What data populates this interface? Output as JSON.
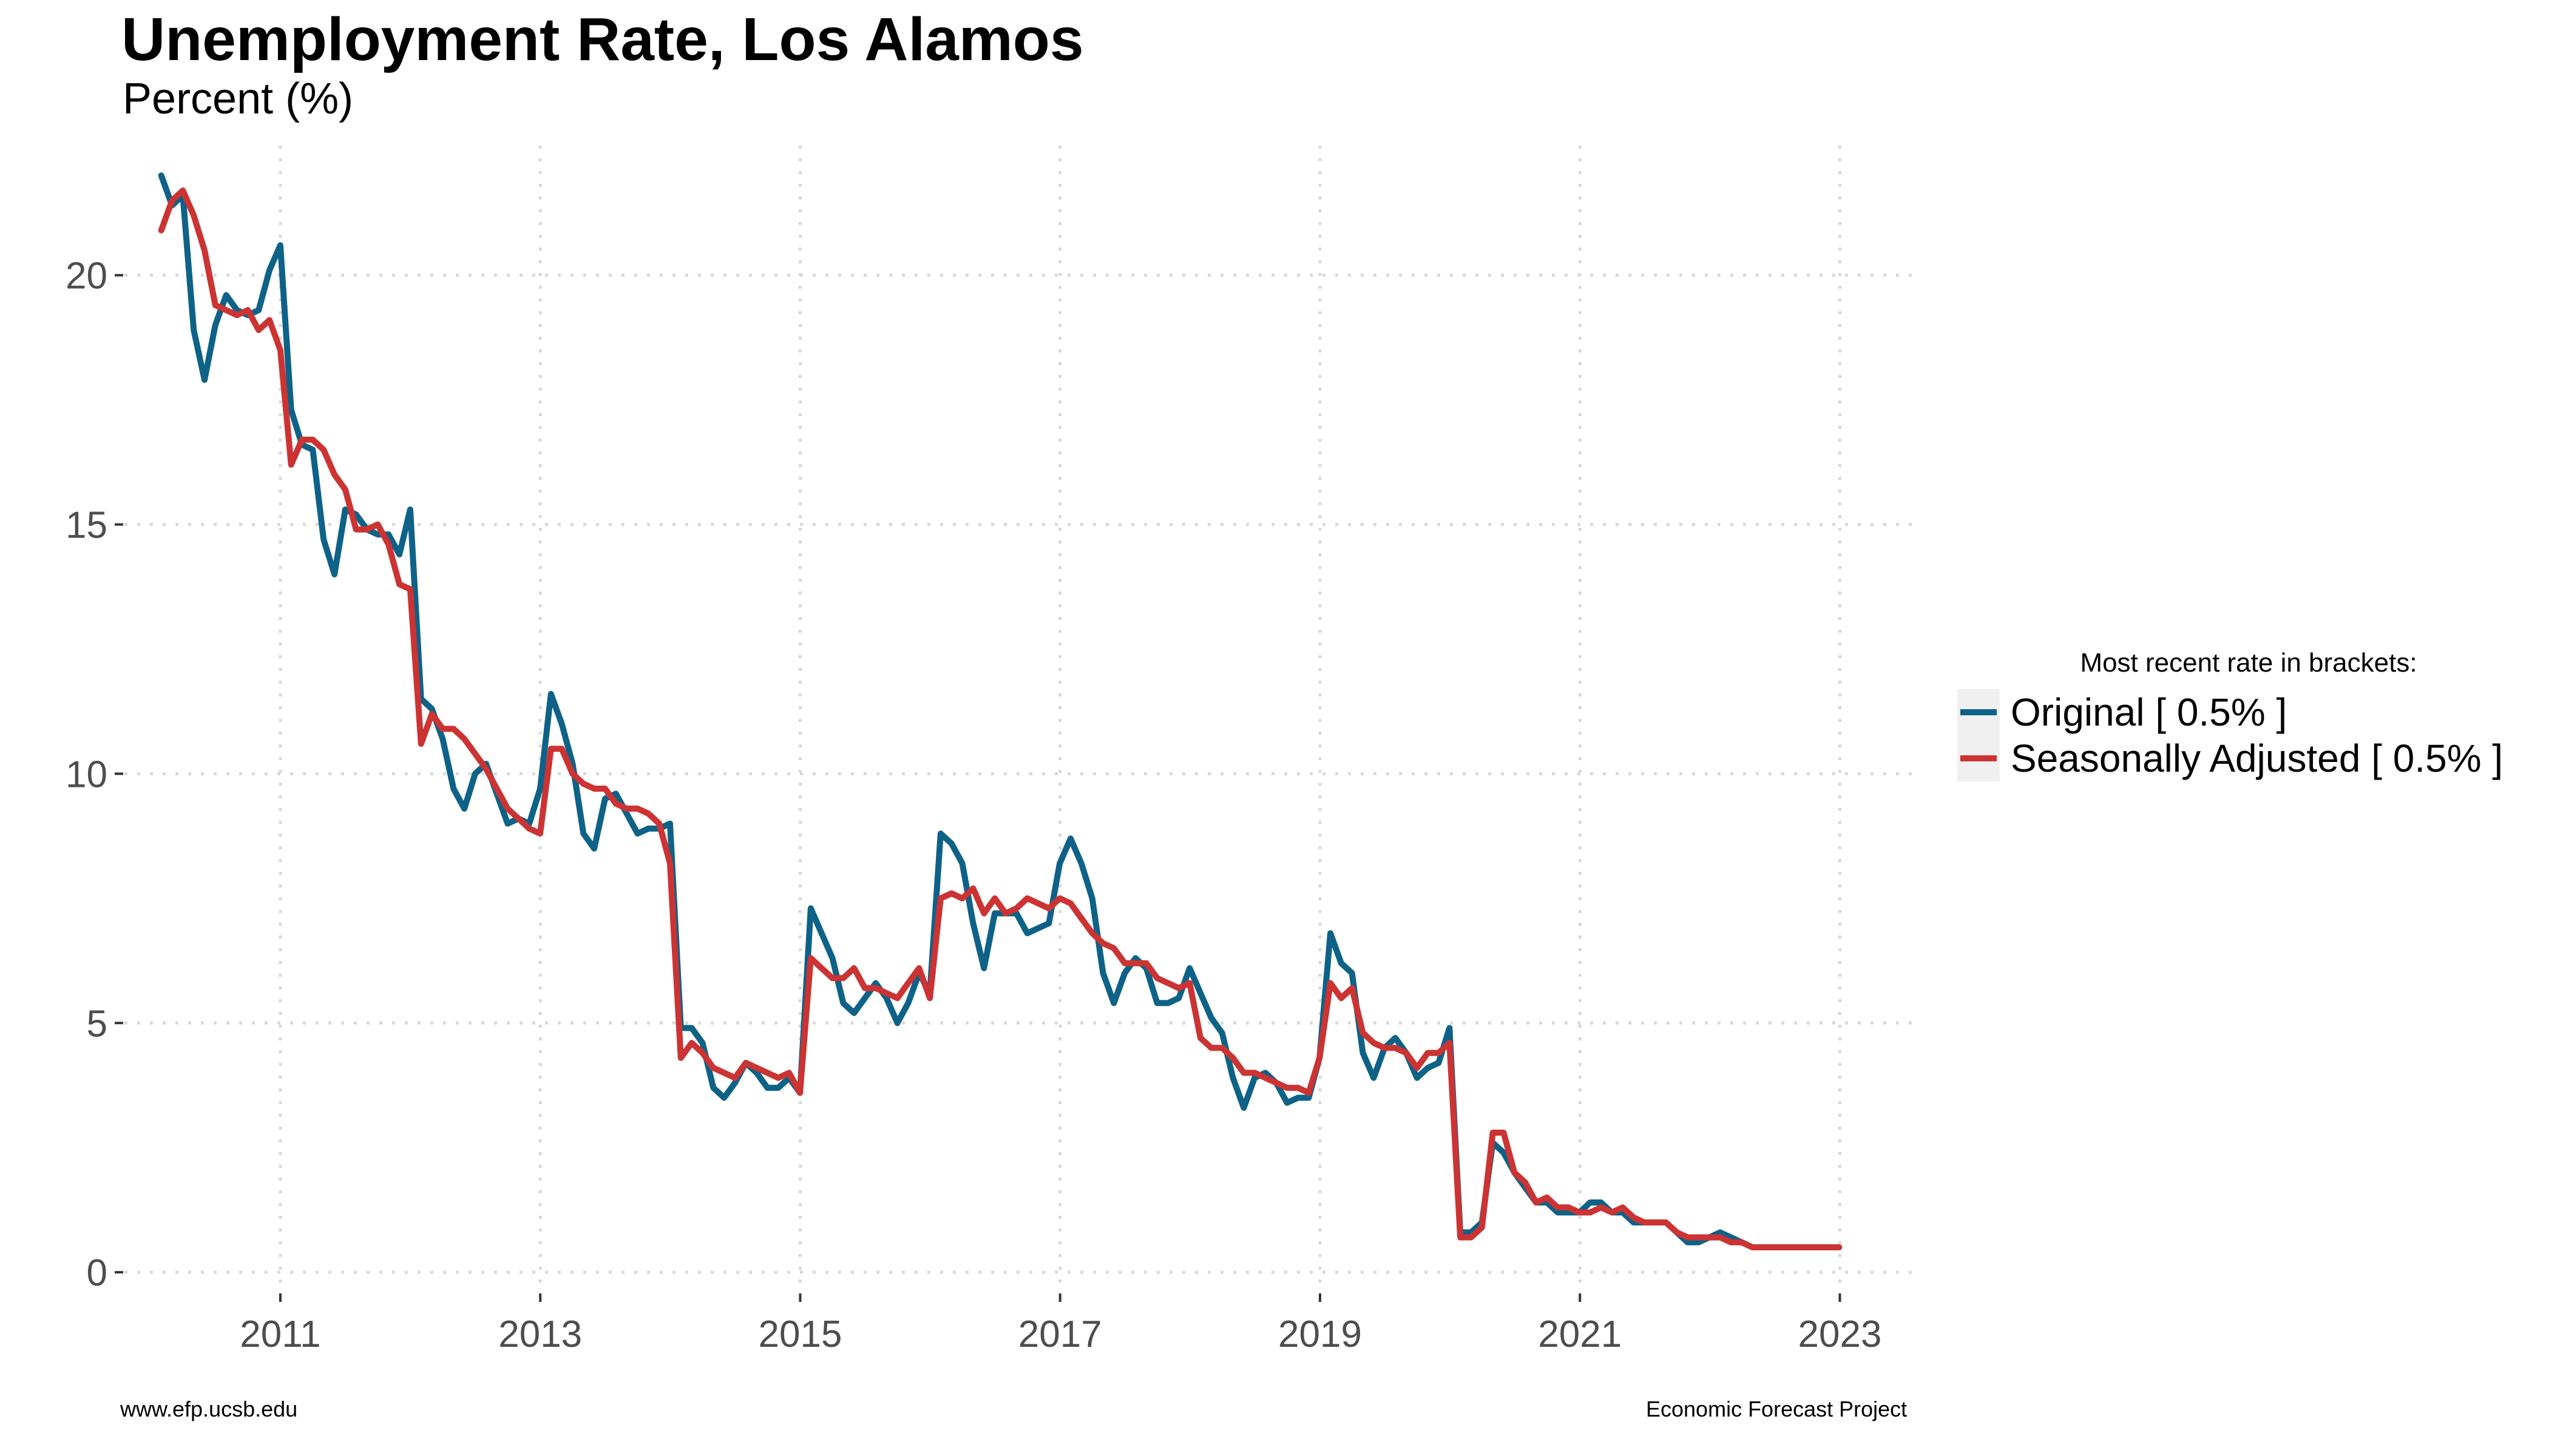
{
  "header": {
    "title": "Unemployment Rate, Los Alamos",
    "subtitle": "Percent (%)"
  },
  "legend": {
    "title": "Most recent rate in brackets:",
    "items": [
      {
        "label": "Original [ 0.5% ]",
        "color": "#0e6287"
      },
      {
        "label": "Seasonally Adjusted [ 0.5% ]",
        "color": "#cc3333"
      }
    ]
  },
  "footer": {
    "left": "www.efp.ucsb.edu",
    "right": "Economic Forecast Project"
  },
  "chart_data": {
    "type": "line",
    "title": "Unemployment Rate, Los Alamos",
    "subtitle": "Percent (%)",
    "xlabel": "",
    "ylabel": "",
    "xlim": [
      2009.8,
      2023.6
    ],
    "ylim": [
      -0.4,
      22.6
    ],
    "x_ticks": [
      2011,
      2013,
      2015,
      2017,
      2019,
      2021,
      2023
    ],
    "y_ticks": [
      0,
      5,
      10,
      15,
      20
    ],
    "x_start": 2010.0833,
    "x_step": 0.0833,
    "grid": true,
    "legend_position": "right",
    "series": [
      {
        "name": "Original",
        "color": "#0e6287",
        "values": [
          22.0,
          21.4,
          21.6,
          18.9,
          17.9,
          19.0,
          19.6,
          19.3,
          19.2,
          19.3,
          20.1,
          20.6,
          17.3,
          16.6,
          16.5,
          14.7,
          14.0,
          15.3,
          15.2,
          14.9,
          14.8,
          14.8,
          14.4,
          15.3,
          11.5,
          11.3,
          10.7,
          9.7,
          9.3,
          10.0,
          10.2,
          9.6,
          9.0,
          9.1,
          9.0,
          9.7,
          11.6,
          11.0,
          10.2,
          8.8,
          8.5,
          9.5,
          9.6,
          9.2,
          8.8,
          8.9,
          8.9,
          9.0,
          4.9,
          4.9,
          4.6,
          3.7,
          3.5,
          3.8,
          4.2,
          4.0,
          3.7,
          3.7,
          3.9,
          3.6,
          7.3,
          6.8,
          6.3,
          5.4,
          5.2,
          5.5,
          5.8,
          5.5,
          5.0,
          5.4,
          6.0,
          5.6,
          8.8,
          8.6,
          8.2,
          7.0,
          6.1,
          7.2,
          7.2,
          7.2,
          6.8,
          6.9,
          7.0,
          8.2,
          8.7,
          8.2,
          7.5,
          6.0,
          5.4,
          6.0,
          6.3,
          6.1,
          5.4,
          5.4,
          5.5,
          6.1,
          5.6,
          5.1,
          4.8,
          3.9,
          3.3,
          3.9,
          4.0,
          3.8,
          3.4,
          3.5,
          3.5,
          4.3,
          6.8,
          6.2,
          6.0,
          4.4,
          3.9,
          4.5,
          4.7,
          4.4,
          3.9,
          4.1,
          4.2,
          4.9,
          0.8,
          0.8,
          1.0,
          2.6,
          2.4,
          2.0,
          1.7,
          1.4,
          1.4,
          1.2,
          1.2,
          1.2,
          1.4,
          1.4,
          1.2,
          1.2,
          1.0,
          1.0,
          1.0,
          1.0,
          0.8,
          0.6,
          0.6,
          0.7,
          0.8,
          0.7,
          0.6,
          0.5,
          0.5,
          0.5,
          0.5,
          0.5,
          0.5,
          0.5,
          0.5,
          0.5
        ]
      },
      {
        "name": "Seasonally Adjusted",
        "color": "#cc3333",
        "values": [
          20.9,
          21.5,
          21.7,
          21.2,
          20.5,
          19.4,
          19.3,
          19.2,
          19.3,
          18.9,
          19.1,
          18.5,
          16.2,
          16.7,
          16.7,
          16.5,
          16.0,
          15.7,
          14.9,
          14.9,
          15.0,
          14.6,
          13.8,
          13.7,
          10.6,
          11.2,
          10.9,
          10.9,
          10.7,
          10.4,
          10.1,
          9.7,
          9.3,
          9.1,
          8.9,
          8.8,
          10.5,
          10.5,
          10.0,
          9.8,
          9.7,
          9.7,
          9.4,
          9.3,
          9.3,
          9.2,
          9.0,
          8.2,
          4.3,
          4.6,
          4.4,
          4.1,
          4.0,
          3.9,
          4.2,
          4.1,
          4.0,
          3.9,
          4.0,
          3.6,
          6.3,
          6.1,
          5.9,
          5.9,
          6.1,
          5.7,
          5.7,
          5.6,
          5.5,
          5.8,
          6.1,
          5.5,
          7.5,
          7.6,
          7.5,
          7.7,
          7.2,
          7.5,
          7.2,
          7.3,
          7.5,
          7.4,
          7.3,
          7.5,
          7.4,
          7.1,
          6.8,
          6.6,
          6.5,
          6.2,
          6.2,
          6.2,
          5.9,
          5.8,
          5.7,
          5.8,
          4.7,
          4.5,
          4.5,
          4.3,
          4.0,
          4.0,
          3.9,
          3.8,
          3.7,
          3.7,
          3.6,
          4.3,
          5.8,
          5.5,
          5.7,
          4.8,
          4.6,
          4.5,
          4.5,
          4.4,
          4.1,
          4.4,
          4.4,
          4.6,
          0.7,
          0.7,
          0.9,
          2.8,
          2.8,
          2.0,
          1.8,
          1.4,
          1.5,
          1.3,
          1.3,
          1.2,
          1.2,
          1.3,
          1.2,
          1.3,
          1.1,
          1.0,
          1.0,
          1.0,
          0.8,
          0.7,
          0.7,
          0.7,
          0.7,
          0.6,
          0.6,
          0.5,
          0.5,
          0.5,
          0.5,
          0.5,
          0.5,
          0.5,
          0.5,
          0.5
        ]
      }
    ]
  }
}
